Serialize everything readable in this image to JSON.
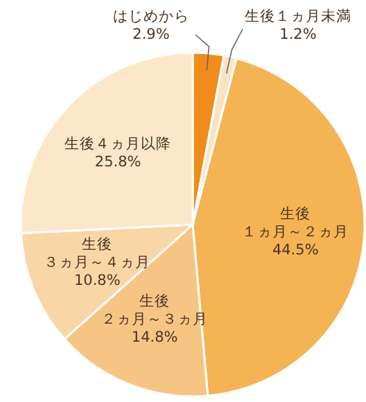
{
  "chart_data": {
    "type": "pie",
    "categories": [
      "はじめから",
      "生後１ヵ月未満",
      "生後１ヵ月～２ヵ月",
      "生後２ヵ月～３ヵ月",
      "生後３ヵ月～４ヵ月",
      "生後４ヵ月以降"
    ],
    "values": [
      2.9,
      1.2,
      44.5,
      14.8,
      10.8,
      25.8
    ],
    "value_labels": [
      "2.9%",
      "1.2%",
      "44.5%",
      "14.8%",
      "10.8%",
      "25.8%"
    ],
    "colors": [
      "#ef8c1a",
      "#fbe3c2",
      "#f4b454",
      "#f7c583",
      "#f9d6a6",
      "#fde7c9"
    ]
  }
}
